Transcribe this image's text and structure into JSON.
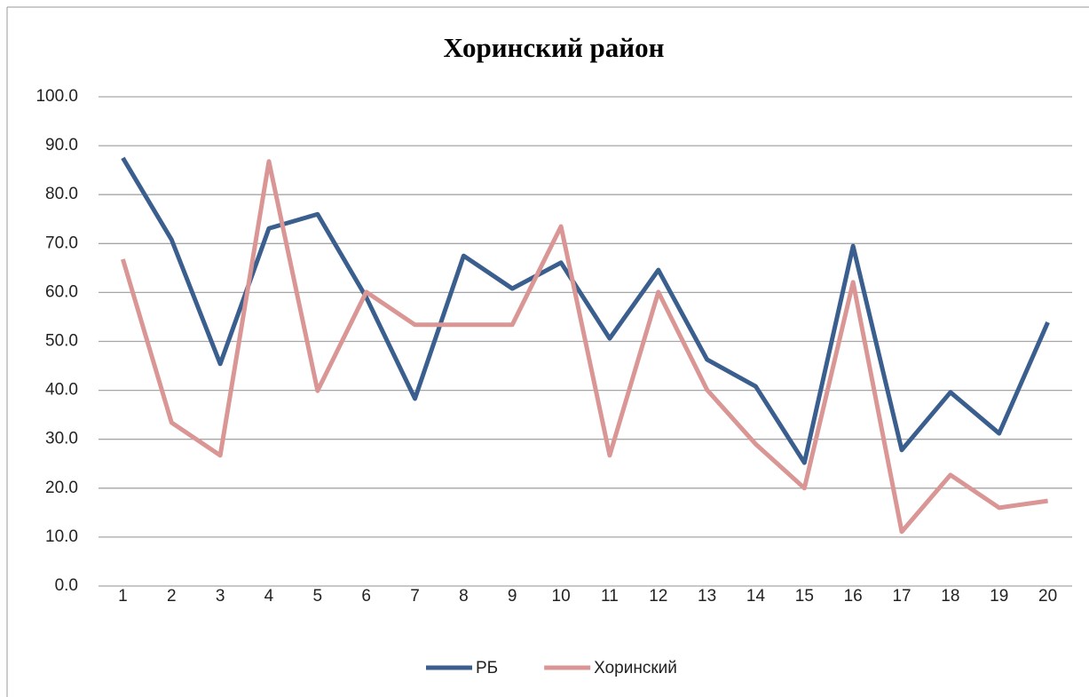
{
  "chart_data": {
    "type": "line",
    "title": "Хоринский район",
    "categories": [
      "1",
      "2",
      "3",
      "4",
      "5",
      "6",
      "7",
      "8",
      "9",
      "10",
      "11",
      "12",
      "13",
      "14",
      "15",
      "16",
      "17",
      "18",
      "19",
      "20"
    ],
    "series": [
      {
        "name": "РБ",
        "color": "#3a5f8e",
        "values": [
          87.5,
          70.8,
          45.4,
          73.1,
          76.0,
          59.0,
          38.3,
          67.5,
          60.8,
          66.1,
          50.6,
          64.6,
          46.3,
          40.8,
          25.2,
          69.5,
          27.8,
          39.6,
          31.2,
          53.9
        ]
      },
      {
        "name": "Хоринский",
        "color": "#d99694",
        "values": [
          66.8,
          33.4,
          26.7,
          86.8,
          39.9,
          60.1,
          53.4,
          53.4,
          53.4,
          73.5,
          26.7,
          60.1,
          40.1,
          29.0,
          20.0,
          62.1,
          11.1,
          22.7,
          16.0,
          17.4
        ]
      }
    ],
    "ylim": [
      0,
      100
    ],
    "yticks": [
      {
        "value": 0,
        "label": "0.0"
      },
      {
        "value": 10,
        "label": "10.0"
      },
      {
        "value": 20,
        "label": "20.0"
      },
      {
        "value": 30,
        "label": "30.0"
      },
      {
        "value": 40,
        "label": "40.0"
      },
      {
        "value": 50,
        "label": "50.0"
      },
      {
        "value": 60,
        "label": "60.0"
      },
      {
        "value": 70,
        "label": "70.0"
      },
      {
        "value": 80,
        "label": "80.0"
      },
      {
        "value": 90,
        "label": "90.0"
      },
      {
        "value": 100,
        "label": "100.0"
      }
    ],
    "grid": true,
    "legend": "bottom"
  }
}
